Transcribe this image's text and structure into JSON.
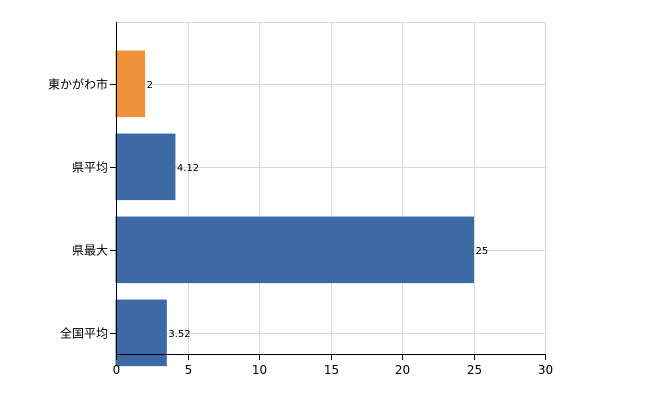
{
  "chart_data": {
    "type": "bar",
    "orientation": "horizontal",
    "categories": [
      "東かがわ市",
      "県平均",
      "県最大",
      "全国平均"
    ],
    "values": [
      2,
      4.12,
      25,
      3.52
    ],
    "value_labels": [
      "2",
      "4.12",
      "25",
      "3.52"
    ],
    "colors": [
      "#f0923a",
      "#3d6aa5",
      "#3d6aa5",
      "#3d6aa5"
    ],
    "xlim": [
      0,
      30
    ],
    "xticks": [
      0,
      5,
      10,
      15,
      20,
      25,
      30
    ],
    "grid": true,
    "title": "",
    "xlabel": "",
    "ylabel": ""
  }
}
